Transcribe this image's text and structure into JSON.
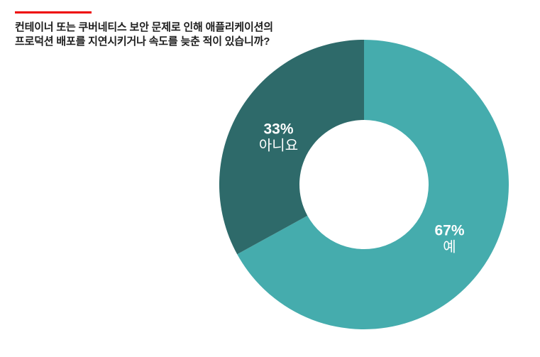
{
  "page": {
    "background": "#FFFFFF"
  },
  "header": {
    "accent_bar_color": "#EE0000",
    "text_color": "#1E1E1E",
    "question_line1": "컨테이너 또는 쿠버네티스 보안 문제로 인해 애플리케이션의",
    "question_line2": "프로덕션 배포를 지연시키거나 속도를 늦춘 적이 있습니까?"
  },
  "chart_data": {
    "type": "pie",
    "subtype": "donut",
    "title": "컨테이너 또는 쿠버네티스 보안 문제로 인해 애플리케이션의 프로덕션 배포를 지연시키거나 속도를 늦춘 적이 있습니까?",
    "categories": [
      "예",
      "아니요"
    ],
    "values": [
      67,
      33
    ],
    "unit": "%",
    "slices": [
      {
        "label": "예",
        "pct_text": "67%",
        "value": 67,
        "color": "#45ACAD"
      },
      {
        "label": "아니요",
        "pct_text": "33%",
        "value": 33,
        "color": "#2E6A6A"
      }
    ],
    "label_text_color": "#FFFFFF",
    "start_angle_deg": 0,
    "direction": "clockwise",
    "legend_position": "none",
    "labels_inside": true,
    "grid": false
  }
}
